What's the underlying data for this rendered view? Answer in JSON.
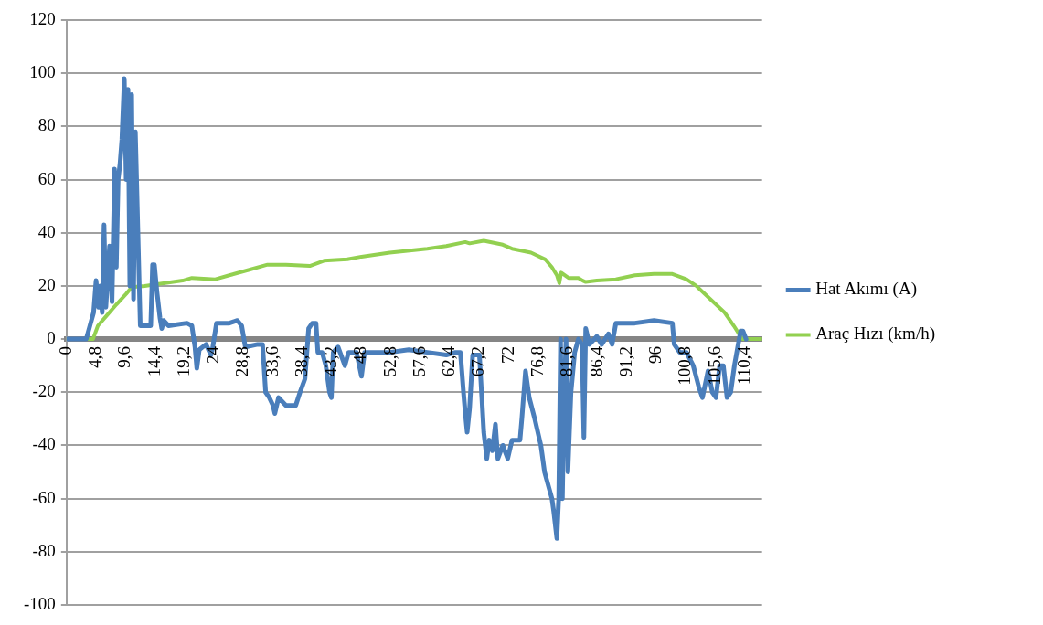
{
  "chart_data": {
    "type": "line",
    "series": [
      {
        "name": "Hat Akımı (A)",
        "color": "#4a7ebb",
        "x": [
          0,
          3.2,
          3.8,
          4.4,
          4.8,
          5.2,
          5.5,
          5.8,
          6.1,
          6.4,
          7,
          7.4,
          7.7,
          7.8,
          8.1,
          8.4,
          8.7,
          9.0,
          9.4,
          9.7,
          10,
          10.3,
          10.6,
          10.9,
          11.2,
          11.4,
          12,
          13.7,
          14.0,
          14.3,
          14.7,
          15.2,
          15.5,
          15.8,
          16.6,
          19.6,
          20.4,
          20.9,
          21.2,
          21.6,
          22.7,
          23.5,
          23.8,
          24.4,
          26.5,
          27.8,
          28.5,
          29.1,
          31.1,
          31.9,
          32.4,
          33.0,
          33.6,
          33.9,
          34.5,
          35.7,
          37.3,
          38.0,
          38.8,
          39.4,
          40.0,
          40.6,
          40.9,
          41.6,
          42.2,
          42.8,
          43.1,
          43.4,
          44.2,
          45.3,
          45.9,
          47.2,
          48.0,
          48.5,
          49.5,
          52.6,
          55.7,
          58.7,
          61.8,
          63.3,
          64.1,
          64.6,
          64.9,
          65.2,
          65.6,
          66.1,
          67.2,
          67.9,
          68.4,
          68.8,
          69.3,
          69.8,
          70.2,
          71.0,
          71.8,
          72.5,
          73.8,
          74.1,
          74.7,
          75.3,
          76.2,
          77.2,
          77.8,
          78.4,
          79.0,
          79.3,
          79.8,
          80.1,
          80.4,
          80.7,
          81.0,
          81.3,
          81.6,
          82.1,
          82.7,
          83.3,
          83.9,
          84.2,
          84.5,
          85.1,
          86.3,
          87.1,
          88.2,
          88.8,
          89.4,
          92.5,
          95.6,
          98.6,
          98.9,
          99.8,
          100.9,
          102.0,
          102.9,
          103.5,
          104.4,
          105.1,
          105.7,
          106.3,
          106.9,
          107.5,
          108.1,
          108.7,
          109.7,
          110.1,
          110.6
        ],
        "values": [
          0,
          0,
          5,
          10,
          22,
          12,
          20,
          10,
          43,
          12,
          35,
          14,
          50,
          64,
          27,
          60,
          66,
          75,
          98,
          60,
          94,
          20,
          92,
          15,
          78,
          60,
          5,
          5,
          28,
          28,
          18,
          8,
          4,
          7,
          5,
          6,
          5,
          -3,
          -11,
          -4,
          -2,
          -6,
          -3,
          6,
          6,
          7,
          5,
          -3,
          -2,
          -2,
          -20,
          -22,
          -25,
          -28,
          -22,
          -25,
          -25,
          -20,
          -15,
          4,
          6,
          6,
          -5,
          -5,
          -10,
          -20,
          -22,
          -5,
          -3,
          -10,
          -5,
          -5,
          -14,
          -5,
          -5,
          -5,
          -4,
          -5,
          -6,
          -5,
          -5,
          -20,
          -28,
          -35,
          -26,
          -6,
          -6,
          -35,
          -45,
          -38,
          -42,
          -32,
          -45,
          -40,
          -45,
          -38,
          -38,
          -30,
          -12,
          -22,
          -30,
          -40,
          -50,
          -55,
          -60,
          -65,
          -75,
          -60,
          0,
          -60,
          -20,
          0,
          -50,
          -20,
          -5,
          0,
          -2,
          -37,
          4,
          -2,
          1,
          -2,
          2,
          -2,
          6,
          6,
          7,
          6,
          -2,
          -5,
          -5,
          -10,
          -18,
          -22,
          -12,
          -20,
          -22,
          -10,
          -10,
          -22,
          -20,
          -10,
          3,
          3,
          0
        ]
      },
      {
        "name": "Araç Hızı (km/h)",
        "color": "#92d050",
        "x": [
          0,
          4.3,
          5.1,
          6.6,
          8.1,
          9.7,
          10.6,
          12.7,
          15.8,
          18.9,
          20.4,
          24.2,
          26.5,
          29.6,
          32.7,
          35.7,
          39.6,
          41.9,
          45.7,
          48.0,
          52.6,
          58.7,
          61.8,
          64.9,
          65.6,
          67.9,
          71.0,
          72.5,
          75.6,
          77.9,
          79.0,
          79.8,
          80.2,
          80.5,
          81.7,
          83.3,
          84.0,
          84.5,
          86.3,
          89.4,
          92.5,
          95.6,
          98.6,
          100.9,
          102.5,
          104.8,
          107.1,
          108.6,
          109.7,
          110.1,
          113.2
        ],
        "values": [
          0,
          0,
          5,
          9,
          13,
          17,
          19.5,
          20,
          21,
          22,
          23,
          22.5,
          24,
          26,
          28,
          28,
          27.5,
          29.5,
          30,
          31,
          32.5,
          34,
          35,
          36.5,
          36,
          37,
          35.5,
          34,
          32.5,
          30,
          27,
          24,
          21,
          25,
          23,
          23,
          22,
          21.5,
          22,
          22.5,
          24,
          24.5,
          24.5,
          22.5,
          20,
          15,
          10,
          5,
          1,
          0,
          0
        ]
      }
    ],
    "xlim": [
      0,
      113.2
    ],
    "xticks": [
      0,
      {
        "value": 4.8,
        "label": "4,8"
      },
      {
        "value": 9.6,
        "label": "9,6"
      },
      {
        "value": 14.4,
        "label": "14,4"
      },
      {
        "value": 19.2,
        "label": "19,2"
      },
      24,
      {
        "value": 28.8,
        "label": "28,8"
      },
      {
        "value": 33.6,
        "label": "33,6"
      },
      {
        "value": 38.4,
        "label": "38,4"
      },
      {
        "value": 43.2,
        "label": "43,2"
      },
      48,
      {
        "value": 52.8,
        "label": "52,8"
      },
      {
        "value": 57.6,
        "label": "57,6"
      },
      {
        "value": 62.4,
        "label": "62,4"
      },
      {
        "value": 67.2,
        "label": "67,2"
      },
      72,
      {
        "value": 76.8,
        "label": "76,8"
      },
      {
        "value": 81.6,
        "label": "81,6"
      },
      {
        "value": 86.4,
        "label": "86,4"
      },
      {
        "value": 91.2,
        "label": "91,2"
      },
      96,
      {
        "value": 100.8,
        "label": "100,8"
      },
      {
        "value": 105.6,
        "label": "105,6"
      },
      {
        "value": 110.4,
        "label": "110,4"
      }
    ],
    "ylim": [
      -100,
      120
    ],
    "yticks": [
      -100,
      -80,
      -60,
      -40,
      -20,
      0,
      20,
      40,
      60,
      80,
      100,
      120
    ],
    "grid": "y",
    "legend": "right",
    "marker": "none",
    "line_style": "solid"
  }
}
